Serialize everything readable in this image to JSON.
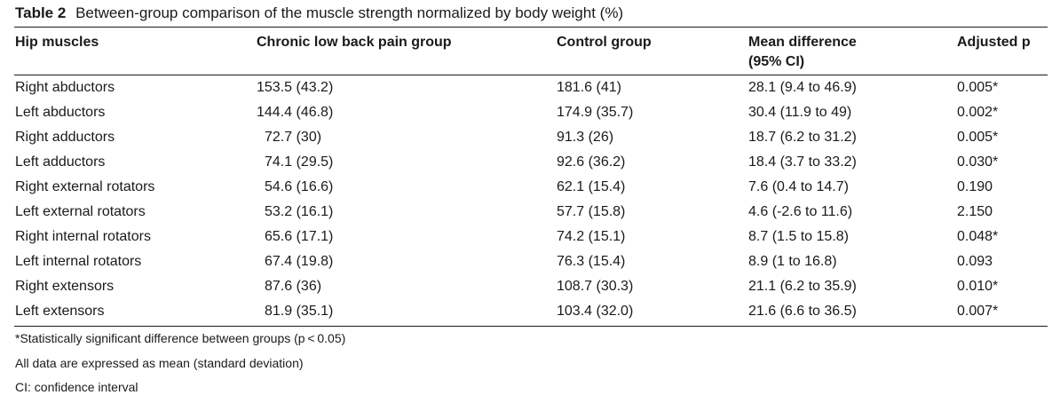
{
  "caption": {
    "label": "Table 2",
    "text": "Between-group comparison of the muscle strength normalized by body weight (%)"
  },
  "headers": {
    "col1": "Hip muscles",
    "col2": "Chronic low back pain group",
    "col3": "Control group",
    "col4_line1": "Mean difference",
    "col4_line2": "(95% CI)",
    "col5": "Adjusted p"
  },
  "rows": [
    {
      "muscle": "Right abductors",
      "clbp": "153.5 (43.2)",
      "control": "181.6 (41)",
      "diff": "28.1 (9.4 to 46.9)",
      "p": "0.005*"
    },
    {
      "muscle": "Left abductors",
      "clbp": "144.4 (46.8)",
      "control": "174.9 (35.7)",
      "diff": "30.4 (11.9 to 49)",
      "p": "0.002*"
    },
    {
      "muscle": "Right adductors",
      "clbp": "72.7 (30)",
      "control": "91.3 (26)",
      "diff": "18.7 (6.2 to 31.2)",
      "p": "0.005*"
    },
    {
      "muscle": "Left adductors",
      "clbp": "74.1 (29.5)",
      "control": "92.6 (36.2)",
      "diff": "18.4 (3.7 to 33.2)",
      "p": "0.030*"
    },
    {
      "muscle": "Right external rotators",
      "clbp": "54.6 (16.6)",
      "control": "62.1 (15.4)",
      "diff": "7.6 (0.4 to 14.7)",
      "p": "0.190"
    },
    {
      "muscle": "Left external rotators",
      "clbp": "53.2 (16.1)",
      "control": "57.7 (15.8)",
      "diff": "4.6 (-2.6 to 11.6)",
      "p": "2.150"
    },
    {
      "muscle": "Right internal rotators",
      "clbp": "65.6 (17.1)",
      "control": "74.2 (15.1)",
      "diff": "8.7 (1.5 to 15.8)",
      "p": "0.048*"
    },
    {
      "muscle": "Left internal rotators",
      "clbp": "67.4 (19.8)",
      "control": "76.3 (15.4)",
      "diff": "8.9 (1 to 16.8)",
      "p": "0.093"
    },
    {
      "muscle": "Right extensors",
      "clbp": "87.6 (36)",
      "control": "108.7 (30.3)",
      "diff": "21.1 (6.2 to 35.9)",
      "p": "0.010*"
    },
    {
      "muscle": "Left extensors",
      "clbp": "81.9 (35.1)",
      "control": "103.4 (32.0)",
      "diff": "21.6 (6.6 to 36.5)",
      "p": "0.007*"
    }
  ],
  "footnotes": {
    "significance": "*Statistically significant difference between groups (p < 0.05)",
    "data_note": "All data are expressed as mean (standard deviation)",
    "ci_note": "CI: confidence interval"
  }
}
